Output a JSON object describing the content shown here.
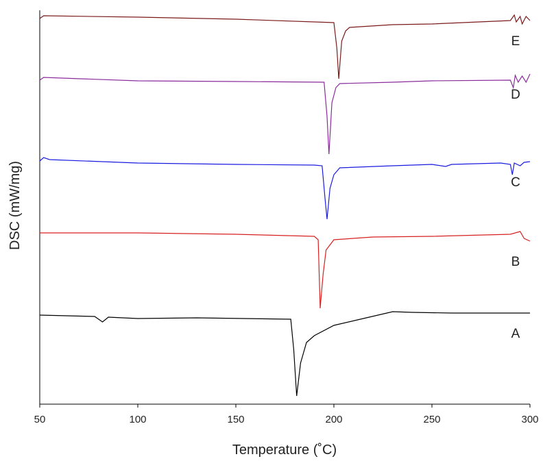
{
  "chart_data": {
    "type": "line",
    "xlabel": "Temperature (˚C)",
    "ylabel": "DSC (mW/mg)",
    "xlim": [
      50,
      300
    ],
    "xticks": [
      50,
      100,
      150,
      200,
      250,
      300
    ],
    "ylim": [
      0,
      575
    ],
    "series": [
      {
        "name": "A",
        "color": "#000000",
        "x": [
          50,
          78,
          82,
          85,
          100,
          130,
          178,
          179.5,
          181,
          183,
          186,
          190,
          200,
          215,
          230,
          240,
          260,
          300
        ],
        "values": [
          130,
          128,
          120,
          127,
          125,
          126,
          124,
          80,
          12,
          60,
          90,
          100,
          115,
          125,
          135,
          134,
          133,
          133
        ]
      },
      {
        "name": "B",
        "color": "#d62020",
        "x": [
          50,
          100,
          150,
          190,
          192,
          193,
          194.5,
          196,
          200,
          220,
          250,
          290,
          295,
          297,
          300
        ],
        "values": [
          250,
          250,
          248,
          245,
          240,
          140,
          190,
          225,
          240,
          244,
          245,
          248,
          252,
          242,
          238
        ]
      },
      {
        "name": "C",
        "color": "#1a1ae0",
        "x": [
          50,
          52,
          55,
          100,
          150,
          190,
          194,
          195.5,
          196.5,
          198,
          200,
          203,
          230,
          250,
          257,
          260,
          285,
          290,
          291,
          292,
          295,
          297,
          300
        ],
        "values": [
          355,
          360,
          357,
          352,
          350,
          349,
          348,
          300,
          270,
          315,
          335,
          345,
          348,
          350,
          347,
          350,
          352,
          350,
          335,
          352,
          348,
          353,
          354
        ]
      },
      {
        "name": "D",
        "color": "#8a2b9c",
        "x": [
          50,
          52,
          100,
          150,
          195,
          196.5,
          197.5,
          199,
          201,
          203,
          230,
          250,
          290,
          291.5,
          292.5,
          294,
          296,
          298,
          300
        ],
        "values": [
          473,
          477,
          472,
          471,
          470,
          420,
          365,
          440,
          462,
          468,
          470,
          472,
          473,
          462,
          480,
          470,
          479,
          470,
          482
        ]
      },
      {
        "name": "E",
        "color": "#7a1a1a",
        "x": [
          50,
          52,
          100,
          150,
          200,
          201.5,
          202.5,
          204,
          206,
          208,
          230,
          250,
          290,
          292,
          293,
          295,
          296,
          298,
          300
        ],
        "values": [
          563,
          567,
          565,
          562,
          557,
          520,
          475,
          530,
          545,
          550,
          554,
          555,
          560,
          568,
          558,
          566,
          555,
          566,
          560
        ]
      }
    ]
  }
}
